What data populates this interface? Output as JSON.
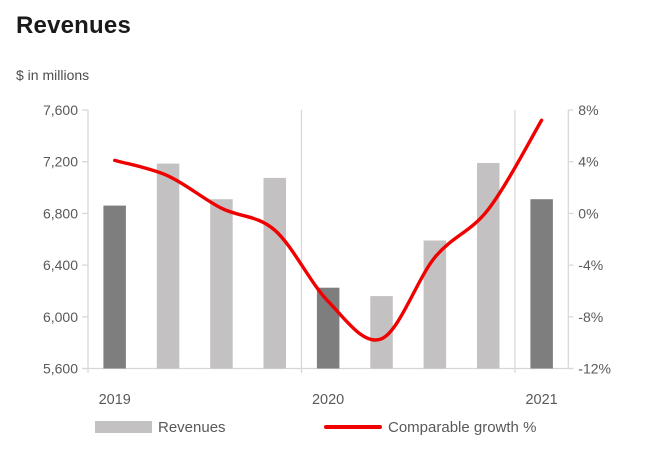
{
  "header": {
    "title": "Revenues",
    "subtitle": "$ in millions"
  },
  "legend": {
    "revenues_label": "Revenues",
    "growth_label": "Comparable growth %"
  },
  "colors": {
    "bar_dark": "#7f7e7e",
    "bar_light": "#c3c1c1",
    "line_red": "#f00000",
    "axis_text": "#595959",
    "grid": "#d6d6d6",
    "title_text": "#1a1a1a"
  },
  "chart_data": {
    "type": "bar+line",
    "title": "Revenues",
    "subtitle": "$ in millions",
    "x_groups": [
      {
        "label": "2019",
        "bars": 4
      },
      {
        "label": "2020",
        "bars": 4
      },
      {
        "label": "2021",
        "bars": 1
      }
    ],
    "series": [
      {
        "name": "Revenues",
        "type": "bar",
        "axis": "left",
        "values": [
          6860,
          7185,
          6910,
          7075,
          6225,
          6160,
          6590,
          7190,
          6910
        ],
        "dark_bar_indices": [
          0,
          4,
          8
        ]
      },
      {
        "name": "Comparable growth %",
        "type": "line",
        "axis": "right",
        "values": [
          4.1,
          2.9,
          0.4,
          -1.3,
          -6.8,
          -9.7,
          -3.4,
          0.3,
          7.2
        ]
      }
    ],
    "left_axis": {
      "min": 5600,
      "max": 7600,
      "tick_step": 400,
      "tick_labels": [
        "7,600",
        "7,200",
        "6,800",
        "6,400",
        "6,000",
        "5,600"
      ]
    },
    "right_axis": {
      "min": -12,
      "max": 8,
      "tick_step": 4,
      "tick_labels": [
        "8%",
        "4%",
        "0%",
        "-4%",
        "-8%",
        "-12%"
      ]
    },
    "legend_position": "bottom",
    "grid": "vertical-year-separators-only"
  }
}
